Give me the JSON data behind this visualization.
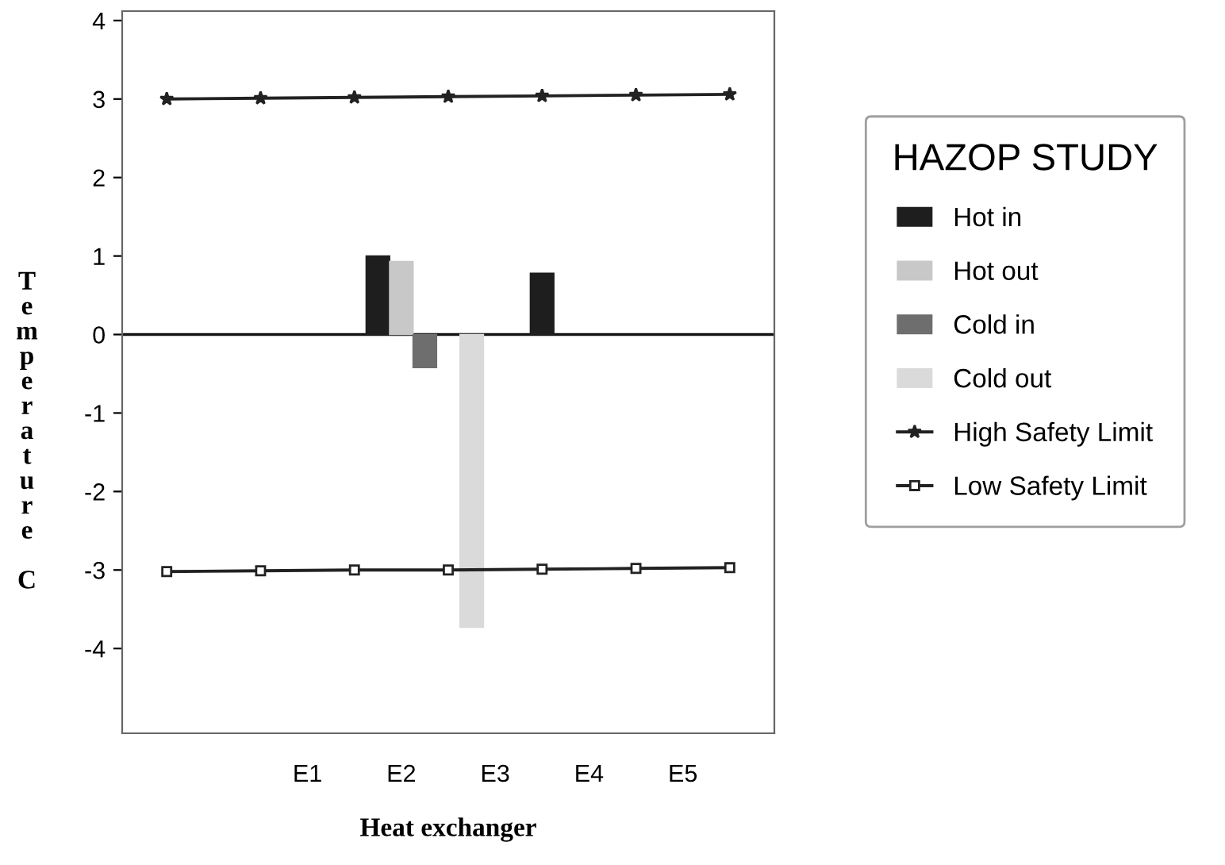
{
  "chart_data": {
    "type": "bar",
    "xlabel": "Heat exchanger",
    "ylabel": "Temperature C",
    "legend_title": "HAZOP STUDY",
    "legend": "right",
    "categories": [
      null,
      null,
      null,
      null,
      null,
      null,
      "E1",
      null,
      null,
      null,
      "E2",
      null,
      null,
      null,
      "E3",
      null,
      null,
      null,
      "E4",
      null,
      null,
      null,
      "E5",
      null,
      null
    ],
    "series": [
      {
        "name": "Hot in",
        "color": "#1e1e1e",
        "values": [
          null,
          null,
          null,
          null,
          null,
          null,
          null,
          null,
          null,
          1.0,
          null,
          null,
          null,
          null,
          null,
          null,
          0.78,
          null,
          null,
          null,
          null,
          null,
          null,
          null,
          null
        ]
      },
      {
        "name": "Hot out",
        "color": "#c8c8c8",
        "values": [
          null,
          null,
          null,
          null,
          null,
          null,
          null,
          null,
          null,
          null,
          0.93,
          null,
          null,
          null,
          null,
          null,
          null,
          null,
          null,
          null,
          null,
          null,
          null,
          null,
          null
        ]
      },
      {
        "name": "Cold in",
        "color": "#6e6e6e",
        "values": [
          null,
          null,
          null,
          null,
          null,
          null,
          null,
          null,
          null,
          null,
          null,
          -0.42,
          null,
          null,
          null,
          null,
          null,
          null,
          null,
          null,
          null,
          null,
          null,
          null,
          null
        ]
      },
      {
        "name": "Cold out",
        "color": "#dadada",
        "values": [
          null,
          null,
          null,
          null,
          null,
          null,
          null,
          null,
          null,
          null,
          null,
          null,
          null,
          -3.73,
          null,
          null,
          null,
          null,
          null,
          null,
          null,
          null,
          null,
          null,
          null
        ]
      },
      {
        "name": "High Safety Limit",
        "type": "line",
        "color": "#222222",
        "marker": "star",
        "values": [
          3.0,
          null,
          null,
          null,
          3.01,
          null,
          null,
          null,
          3.02,
          null,
          null,
          null,
          3.03,
          null,
          null,
          null,
          3.04,
          null,
          null,
          null,
          3.05,
          null,
          null,
          null,
          3.06
        ]
      },
      {
        "name": "Low Safety Limit",
        "type": "line",
        "color": "#222222",
        "marker": "square",
        "values": [
          -3.02,
          null,
          null,
          null,
          -3.01,
          null,
          null,
          null,
          -3.0,
          null,
          null,
          null,
          -3.0,
          null,
          null,
          null,
          -2.99,
          null,
          null,
          null,
          -2.98,
          null,
          null,
          null,
          -2.97
        ]
      }
    ],
    "ylim": [
      -5.08,
      4.12
    ],
    "yticks": [
      -4,
      -3,
      -2,
      -1,
      0,
      1,
      2,
      3,
      4
    ],
    "ref_lines": [
      {
        "axis": "y",
        "value": 0,
        "color": "#111111"
      }
    ]
  }
}
